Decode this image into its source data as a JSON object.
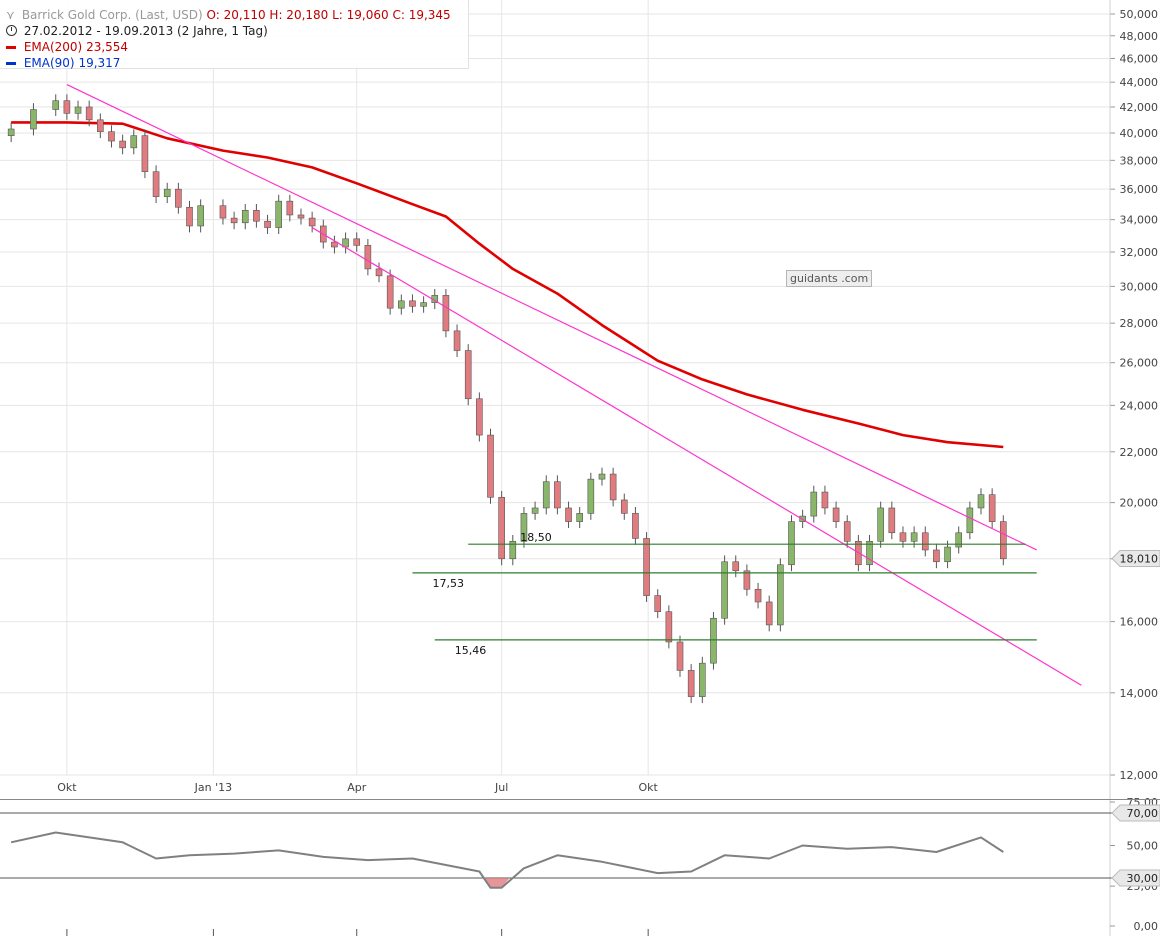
{
  "legend": {
    "instrument": "Barrick Gold Corp. (Last, USD)",
    "ohlc": "O: 20,110  H: 20,180  L: 19,060  C: 19,345",
    "date_range": "27.02.2012 - 19.09.2013 (2 Jahre, 1 Tag)",
    "ema200_label": "EMA(200)",
    "ema200_value": "23,554",
    "ema90_label": "EMA(90)",
    "ema90_value": "19,317"
  },
  "watermark": "guidants .com",
  "colors": {
    "up_candle": "#8ab66a",
    "down_candle": "#e07b80",
    "ema200": "#e00000",
    "ema90": "#0033cc",
    "trendline": "#ff33cc",
    "support": "#2e7d2e",
    "rsi_line": "#808080",
    "rsi_oversold_fill": "#e07b80",
    "grid": "#e6e6e6"
  },
  "chart_data": [
    {
      "type": "candlestick",
      "title": "Barrick Gold Corp. (Last, USD)",
      "ylim": [
        12,
        50
      ],
      "y_ticks": [
        12,
        14,
        16,
        18,
        20,
        22,
        24,
        26,
        28,
        30,
        32,
        34,
        36,
        38,
        40,
        42,
        44,
        46,
        48,
        50
      ],
      "y_tick_labels": [
        "12,000",
        "14,000",
        "16,000",
        "18,000",
        "20,000",
        "22,000",
        "24,000",
        "26,000",
        "28,000",
        "30,000",
        "32,000",
        "34,000",
        "36,000",
        "38,000",
        "40,000",
        "42,000",
        "44,000",
        "46,000",
        "48,000",
        "50,000"
      ],
      "x_ticks": [
        {
          "date": "2012-10-01",
          "label": "Okt"
        },
        {
          "date": "2013-01-01",
          "label": "Jan '13"
        },
        {
          "date": "2013-04-01",
          "label": "Apr"
        },
        {
          "date": "2013-07-01",
          "label": "Jul"
        },
        {
          "date": "2013-10-01",
          "label": "Okt"
        }
      ],
      "last_price_label": "18,010",
      "last_price": 18.01,
      "closes": [
        {
          "date": "2012-08-27",
          "close": 40.3
        },
        {
          "date": "2012-09-10",
          "close": 41.8
        },
        {
          "date": "2012-09-24",
          "close": 42.5
        },
        {
          "date": "2012-10-01",
          "close": 41.5
        },
        {
          "date": "2012-10-08",
          "close": 42.0
        },
        {
          "date": "2012-10-15",
          "close": 41.0
        },
        {
          "date": "2012-10-22",
          "close": 40.1
        },
        {
          "date": "2012-10-29",
          "close": 39.4
        },
        {
          "date": "2012-11-05",
          "close": 38.9
        },
        {
          "date": "2012-11-12",
          "close": 39.8
        },
        {
          "date": "2012-11-19",
          "close": 37.2
        },
        {
          "date": "2012-11-26",
          "close": 35.5
        },
        {
          "date": "2012-12-03",
          "close": 36.0
        },
        {
          "date": "2012-12-10",
          "close": 34.8
        },
        {
          "date": "2012-12-17",
          "close": 33.6
        },
        {
          "date": "2012-12-24",
          "close": 34.9
        },
        {
          "date": "2013-01-07",
          "close": 34.1
        },
        {
          "date": "2013-01-14",
          "close": 33.8
        },
        {
          "date": "2013-01-21",
          "close": 34.6
        },
        {
          "date": "2013-01-28",
          "close": 33.9
        },
        {
          "date": "2013-02-04",
          "close": 33.5
        },
        {
          "date": "2013-02-11",
          "close": 35.2
        },
        {
          "date": "2013-02-18",
          "close": 34.3
        },
        {
          "date": "2013-02-25",
          "close": 34.1
        },
        {
          "date": "2013-03-04",
          "close": 33.6
        },
        {
          "date": "2013-03-11",
          "close": 32.6
        },
        {
          "date": "2013-03-18",
          "close": 32.3
        },
        {
          "date": "2013-03-25",
          "close": 32.8
        },
        {
          "date": "2013-04-01",
          "close": 32.4
        },
        {
          "date": "2013-04-08",
          "close": 31.0
        },
        {
          "date": "2013-04-15",
          "close": 30.6
        },
        {
          "date": "2013-04-22",
          "close": 28.8
        },
        {
          "date": "2013-04-29",
          "close": 29.2
        },
        {
          "date": "2013-05-06",
          "close": 28.9
        },
        {
          "date": "2013-05-13",
          "close": 29.1
        },
        {
          "date": "2013-05-20",
          "close": 29.5
        },
        {
          "date": "2013-05-27",
          "close": 27.6
        },
        {
          "date": "2013-06-03",
          "close": 26.6
        },
        {
          "date": "2013-06-10",
          "close": 24.3
        },
        {
          "date": "2013-06-17",
          "close": 22.7
        },
        {
          "date": "2013-06-24",
          "close": 20.2
        },
        {
          "date": "2013-07-01",
          "close": 18.0
        },
        {
          "date": "2013-07-08",
          "close": 18.6
        },
        {
          "date": "2013-07-15",
          "close": 19.6
        },
        {
          "date": "2013-07-22",
          "close": 19.8
        },
        {
          "date": "2013-07-29",
          "close": 20.8
        },
        {
          "date": "2013-08-05",
          "close": 19.8
        },
        {
          "date": "2013-08-12",
          "close": 19.3
        },
        {
          "date": "2013-08-19",
          "close": 19.6
        },
        {
          "date": "2013-08-26",
          "close": 20.9
        },
        {
          "date": "2013-09-02",
          "close": 21.1
        },
        {
          "date": "2013-09-09",
          "close": 20.1
        },
        {
          "date": "2013-09-16",
          "close": 19.6
        },
        {
          "date": "2013-09-23",
          "close": 18.7
        },
        {
          "date": "2013-09-30",
          "close": 16.8
        },
        {
          "date": "2013-10-07",
          "close": 16.3
        },
        {
          "date": "2013-10-14",
          "close": 15.4
        },
        {
          "date": "2013-10-21",
          "close": 14.6
        },
        {
          "date": "2013-10-28",
          "close": 13.9
        },
        {
          "date": "2013-11-04",
          "close": 14.8
        },
        {
          "date": "2013-11-11",
          "close": 16.1
        },
        {
          "date": "2013-11-18",
          "close": 17.9
        },
        {
          "date": "2013-11-25",
          "close": 17.6
        },
        {
          "date": "2013-12-02",
          "close": 17.0
        },
        {
          "date": "2013-12-09",
          "close": 16.6
        },
        {
          "date": "2013-12-16",
          "close": 15.9
        },
        {
          "date": "2013-12-23",
          "close": 17.8
        },
        {
          "date": "2013-12-30",
          "close": 19.3
        },
        {
          "date": "2014-01-06",
          "close": 19.5
        },
        {
          "date": "2014-01-13",
          "close": 20.4
        },
        {
          "date": "2014-01-20",
          "close": 19.8
        },
        {
          "date": "2014-01-27",
          "close": 19.3
        },
        {
          "date": "2014-02-03",
          "close": 18.6
        },
        {
          "date": "2014-02-10",
          "close": 17.8
        },
        {
          "date": "2014-02-17",
          "close": 18.6
        },
        {
          "date": "2014-02-24",
          "close": 19.8
        },
        {
          "date": "2014-03-03",
          "close": 18.9
        },
        {
          "date": "2014-03-10",
          "close": 18.6
        },
        {
          "date": "2014-03-17",
          "close": 18.9
        },
        {
          "date": "2014-03-24",
          "close": 18.3
        },
        {
          "date": "2014-03-31",
          "close": 17.9
        },
        {
          "date": "2014-04-07",
          "close": 18.4
        },
        {
          "date": "2014-04-14",
          "close": 18.9
        },
        {
          "date": "2014-04-21",
          "close": 19.8
        },
        {
          "date": "2014-04-28",
          "close": 20.3
        },
        {
          "date": "2014-05-05",
          "close": 19.3
        },
        {
          "date": "2014-05-12",
          "close": 18.0
        }
      ],
      "ema200": [
        {
          "date": "2012-08-27",
          "value": 40.8
        },
        {
          "date": "2012-10-01",
          "value": 40.8
        },
        {
          "date": "2012-11-05",
          "value": 40.7
        },
        {
          "date": "2012-12-03",
          "value": 39.6
        },
        {
          "date": "2013-01-07",
          "value": 38.7
        },
        {
          "date": "2013-02-04",
          "value": 38.2
        },
        {
          "date": "2013-03-04",
          "value": 37.5
        },
        {
          "date": "2013-04-01",
          "value": 36.4
        },
        {
          "date": "2013-05-06",
          "value": 35.0
        },
        {
          "date": "2013-05-27",
          "value": 34.2
        },
        {
          "date": "2013-06-17",
          "value": 32.5
        },
        {
          "date": "2013-07-08",
          "value": 31.0
        },
        {
          "date": "2013-08-05",
          "value": 29.6
        },
        {
          "date": "2013-09-02",
          "value": 27.9
        },
        {
          "date": "2013-10-07",
          "value": 26.1
        },
        {
          "date": "2013-11-04",
          "value": 25.2
        },
        {
          "date": "2013-12-02",
          "value": 24.5
        },
        {
          "date": "2014-01-06",
          "value": 23.8
        },
        {
          "date": "2014-02-10",
          "value": 23.2
        },
        {
          "date": "2014-03-10",
          "value": 22.7
        },
        {
          "date": "2014-04-07",
          "value": 22.4
        },
        {
          "date": "2014-05-12",
          "value": 22.2
        }
      ],
      "trendlines": [
        {
          "name": "upper",
          "from": {
            "date": "2012-10-01",
            "value": 43.8
          },
          "to": {
            "date": "2014-06-02",
            "value": 18.3
          }
        },
        {
          "name": "lower",
          "from": {
            "date": "2013-03-04",
            "value": 33.5
          },
          "to": {
            "date": "2014-06-30",
            "value": 14.2
          }
        }
      ],
      "support_lines": [
        {
          "label": "18,50",
          "value": 18.5,
          "from": "2013-06-10",
          "to": "2014-05-26"
        },
        {
          "label": "17,53",
          "value": 17.53,
          "from": "2013-05-06",
          "to": "2014-06-02"
        },
        {
          "label": "15,46",
          "value": 15.46,
          "from": "2013-05-20",
          "to": "2014-06-02"
        }
      ]
    },
    {
      "type": "line",
      "title": "",
      "ylim": [
        0,
        75
      ],
      "y_ticks": [
        0,
        25,
        50,
        75
      ],
      "y_tick_labels": [
        "0,00",
        "25,00",
        "50,00",
        "75,00"
      ],
      "levels": [
        {
          "label": "70,00",
          "value": 70
        },
        {
          "label": "30,00",
          "value": 30
        }
      ],
      "values": [
        {
          "date": "2012-08-27",
          "value": 52
        },
        {
          "date": "2012-09-24",
          "value": 58
        },
        {
          "date": "2012-10-15",
          "value": 55
        },
        {
          "date": "2012-11-05",
          "value": 52
        },
        {
          "date": "2012-11-26",
          "value": 42
        },
        {
          "date": "2012-12-17",
          "value": 44
        },
        {
          "date": "2013-01-14",
          "value": 45
        },
        {
          "date": "2013-02-11",
          "value": 47
        },
        {
          "date": "2013-03-11",
          "value": 43
        },
        {
          "date": "2013-04-08",
          "value": 41
        },
        {
          "date": "2013-05-06",
          "value": 42
        },
        {
          "date": "2013-05-27",
          "value": 38
        },
        {
          "date": "2013-06-17",
          "value": 34
        },
        {
          "date": "2013-06-24",
          "value": 24
        },
        {
          "date": "2013-07-01",
          "value": 24
        },
        {
          "date": "2013-07-15",
          "value": 36
        },
        {
          "date": "2013-08-05",
          "value": 44
        },
        {
          "date": "2013-09-02",
          "value": 40
        },
        {
          "date": "2013-10-07",
          "value": 33
        },
        {
          "date": "2013-10-28",
          "value": 34
        },
        {
          "date": "2013-11-18",
          "value": 44
        },
        {
          "date": "2013-12-16",
          "value": 42
        },
        {
          "date": "2014-01-06",
          "value": 50
        },
        {
          "date": "2014-02-03",
          "value": 48
        },
        {
          "date": "2014-03-03",
          "value": 49
        },
        {
          "date": "2014-03-31",
          "value": 46
        },
        {
          "date": "2014-04-28",
          "value": 55
        },
        {
          "date": "2014-05-12",
          "value": 46
        }
      ]
    }
  ]
}
